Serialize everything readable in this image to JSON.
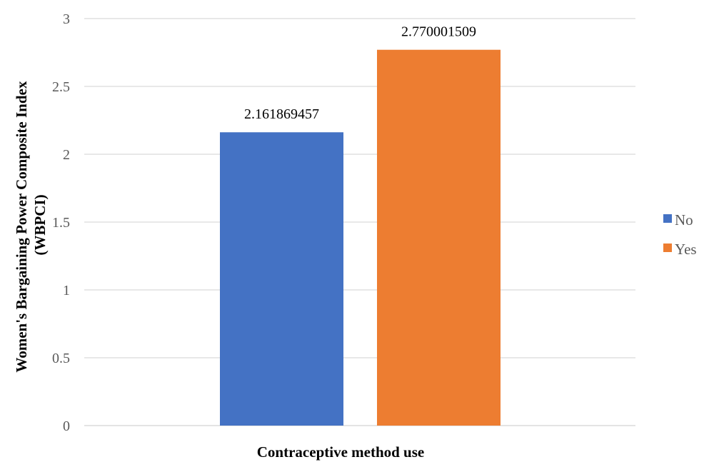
{
  "chart_data": {
    "type": "bar",
    "title": "",
    "xlabel": "Contraceptive method use",
    "ylabel": [
      "Women's Bargaining Power Composite Index",
      "(WBPCI)"
    ],
    "ylim": [
      0,
      3
    ],
    "yticks": [
      "0",
      "0.5",
      "1",
      "1.5",
      "2",
      "2.5",
      "3"
    ],
    "grid": true,
    "legend_position": "right",
    "series": [
      {
        "name": "No",
        "value": 2.161869457,
        "label": "2.161869457",
        "color": "#4472C4"
      },
      {
        "name": "Yes",
        "value": 2.770001509,
        "label": "2.770001509",
        "color": "#ED7D31"
      }
    ]
  }
}
